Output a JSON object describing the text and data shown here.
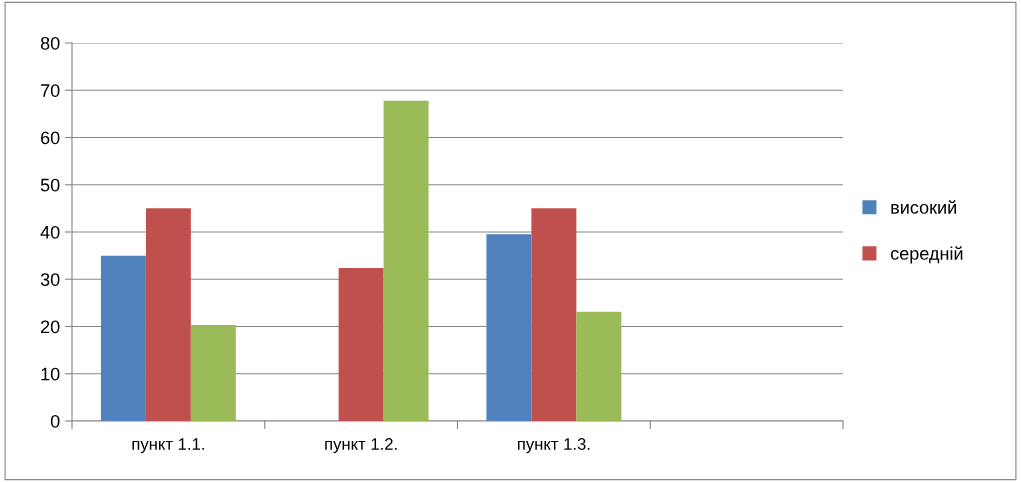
{
  "chart_data": {
    "type": "bar",
    "categories": [
      "пункт 1.1.",
      "пункт 1.2.",
      "пункт 1.3.",
      null
    ],
    "series": [
      {
        "name": "високий",
        "color": "#4f81bd",
        "values": [
          35,
          null,
          39.5,
          null
        ]
      },
      {
        "name": "середній",
        "color": "#c0504d",
        "values": [
          45,
          32.4,
          45,
          null
        ]
      },
      {
        "color": "#9bbb59",
        "values": [
          20.3,
          67.8,
          23.1,
          null
        ]
      }
    ],
    "ylim": [
      0,
      80
    ],
    "yticks": [
      0,
      10,
      20,
      30,
      40,
      50,
      60,
      70,
      80
    ],
    "grid": "y",
    "legend": "right"
  }
}
